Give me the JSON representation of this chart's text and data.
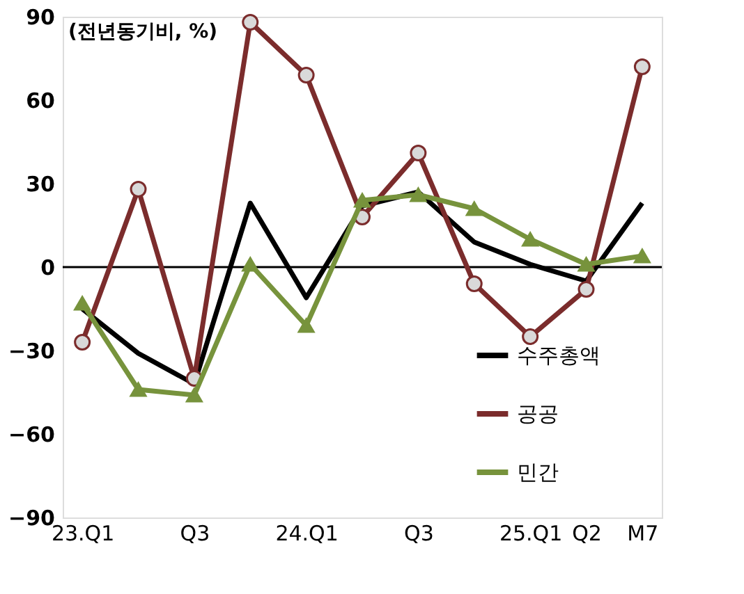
{
  "chart_data": {
    "type": "line",
    "categories": [
      "23.Q1",
      null,
      "Q3",
      null,
      "24.Q1",
      null,
      "Q3",
      null,
      "25.Q1",
      "Q2",
      "M7"
    ],
    "series": [
      {
        "name": "수주총액",
        "color": "#000000",
        "marker": "none",
        "values": [
          -15,
          -31,
          -42,
          23,
          -11,
          22,
          27,
          9,
          1,
          -5,
          23
        ]
      },
      {
        "name": "공공",
        "color": "#7b2c2c",
        "marker": "circle",
        "values": [
          -27,
          28,
          -40,
          88,
          69,
          18,
          41,
          -6,
          -25,
          -8,
          72
        ]
      },
      {
        "name": "민간",
        "color": "#77933c",
        "marker": "triangle",
        "values": [
          -13,
          -44,
          -46,
          1,
          -21,
          24,
          26,
          21,
          10,
          1,
          4
        ]
      }
    ],
    "ylim": [
      -90,
      90
    ],
    "yticks": [
      -90,
      -60,
      -30,
      0,
      30,
      60,
      90
    ],
    "ref_lines": [
      {
        "axis": "y",
        "value": 0,
        "color": "#000000"
      }
    ],
    "annotations": [
      "(전년동기비, %)"
    ],
    "grid": false,
    "legend": "bottom right",
    "line_style": "solid"
  }
}
